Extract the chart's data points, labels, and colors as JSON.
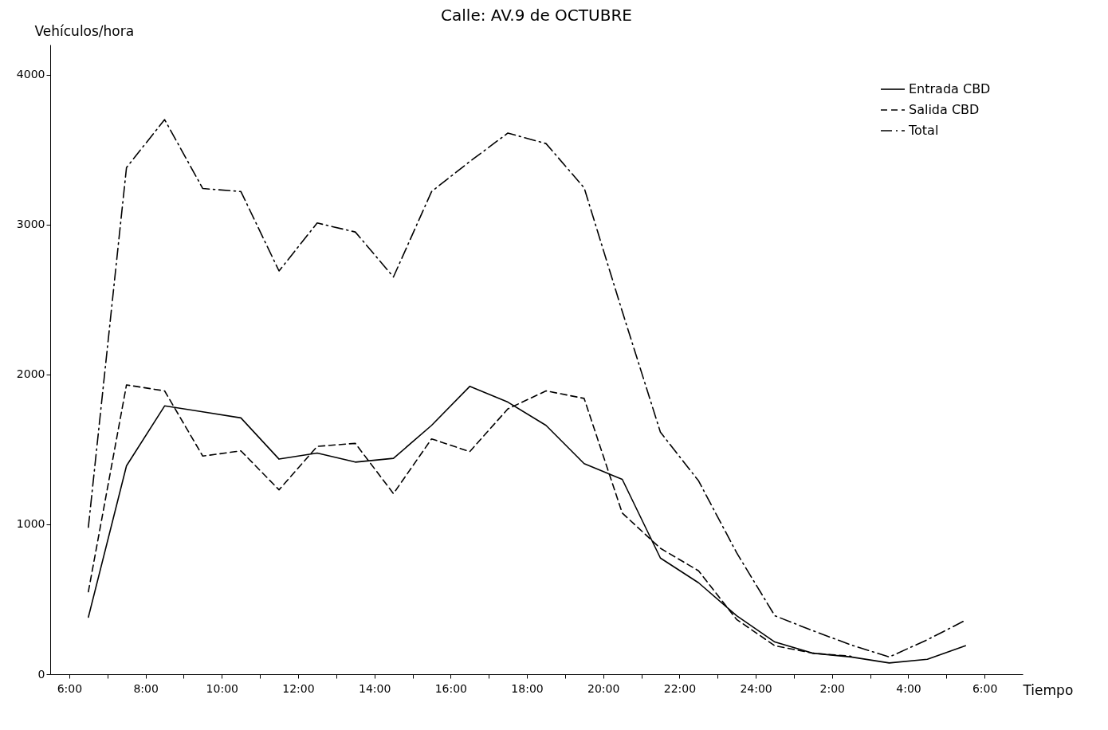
{
  "chart_data": {
    "type": "line",
    "title": "Calle: AV.9 de OCTUBRE",
    "xlabel": "Tiempo",
    "ylabel": "Vehículos/hora",
    "x": [
      "2000-01-01T06:30",
      "2000-01-01T07:30",
      "2000-01-01T08:30",
      "2000-01-01T09:30",
      "2000-01-01T10:30",
      "2000-01-01T11:30",
      "2000-01-01T12:30",
      "2000-01-01T13:30",
      "2000-01-01T14:30",
      "2000-01-01T15:30",
      "2000-01-01T16:30",
      "2000-01-01T17:30",
      "2000-01-01T18:30",
      "2000-01-01T19:30",
      "2000-01-01T20:30",
      "2000-01-01T21:30",
      "2000-01-01T22:30",
      "2000-01-01T23:30",
      "2000-01-02T00:30",
      "2000-01-02T01:30",
      "2000-01-02T02:30",
      "2000-01-02T03:30",
      "2000-01-02T04:30",
      "2000-01-02T05:30"
    ],
    "series": [
      {
        "name": "Entrada CBD",
        "color": "#000000",
        "line_style": "solid",
        "values": [
          380,
          1390,
          1790,
          1750,
          1710,
          1435,
          1475,
          1415,
          1440,
          1660,
          1920,
          1815,
          1660,
          1405,
          1300,
          775,
          610,
          390,
          215,
          140,
          115,
          75,
          100,
          190
        ]
      },
      {
        "name": "Salida CBD",
        "color": "#000000",
        "line_style": "dashed",
        "values": [
          550,
          1930,
          1890,
          1455,
          1490,
          1230,
          1520,
          1540,
          1205,
          1570,
          1485,
          1770,
          1890,
          1840,
          1075,
          840,
          690,
          365,
          190,
          140,
          120,
          null,
          null,
          null
        ]
      },
      {
        "name": "Total",
        "color": "#000000",
        "line_style": "dashdot",
        "values": [
          980,
          3380,
          3700,
          3240,
          3220,
          2690,
          3010,
          2950,
          2650,
          3220,
          3420,
          3610,
          3540,
          3245,
          2420,
          1615,
          1290,
          810,
          390,
          290,
          195,
          115,
          230,
          360
        ]
      }
    ],
    "xlim": [
      "2000-01-01T05:30",
      "2000-01-02T07:00"
    ],
    "xticks": [
      {
        "value": "2000-01-01T06:00",
        "label": "6:00"
      },
      {
        "value": "2000-01-01T07:00",
        "label": null
      },
      {
        "value": "2000-01-01T08:00",
        "label": "8:00"
      },
      {
        "value": "2000-01-01T09:00",
        "label": null
      },
      {
        "value": "2000-01-01T10:00",
        "label": "10:00"
      },
      {
        "value": "2000-01-01T11:00",
        "label": null
      },
      {
        "value": "2000-01-01T12:00",
        "label": "12:00"
      },
      {
        "value": "2000-01-01T13:00",
        "label": null
      },
      {
        "value": "2000-01-01T14:00",
        "label": "14:00"
      },
      {
        "value": "2000-01-01T15:00",
        "label": null
      },
      {
        "value": "2000-01-01T16:00",
        "label": "16:00"
      },
      {
        "value": "2000-01-01T17:00",
        "label": null
      },
      {
        "value": "2000-01-01T18:00",
        "label": "18:00"
      },
      {
        "value": "2000-01-01T19:00",
        "label": null
      },
      {
        "value": "2000-01-01T20:00",
        "label": "20:00"
      },
      {
        "value": "2000-01-01T21:00",
        "label": null
      },
      {
        "value": "2000-01-01T22:00",
        "label": "22:00"
      },
      {
        "value": "2000-01-01T23:00",
        "label": null
      },
      {
        "value": "2000-01-02T00:00",
        "label": "24:00"
      },
      {
        "value": "2000-01-02T01:00",
        "label": null
      },
      {
        "value": "2000-01-02T02:00",
        "label": "2:00"
      },
      {
        "value": "2000-01-02T03:00",
        "label": null
      },
      {
        "value": "2000-01-02T04:00",
        "label": "4:00"
      },
      {
        "value": "2000-01-02T05:00",
        "label": null
      },
      {
        "value": "2000-01-02T06:00",
        "label": "6:00"
      }
    ],
    "ylim": [
      0,
      4200
    ],
    "yticks": [
      0,
      1000,
      2000,
      3000,
      4000
    ],
    "legend": "top right"
  }
}
